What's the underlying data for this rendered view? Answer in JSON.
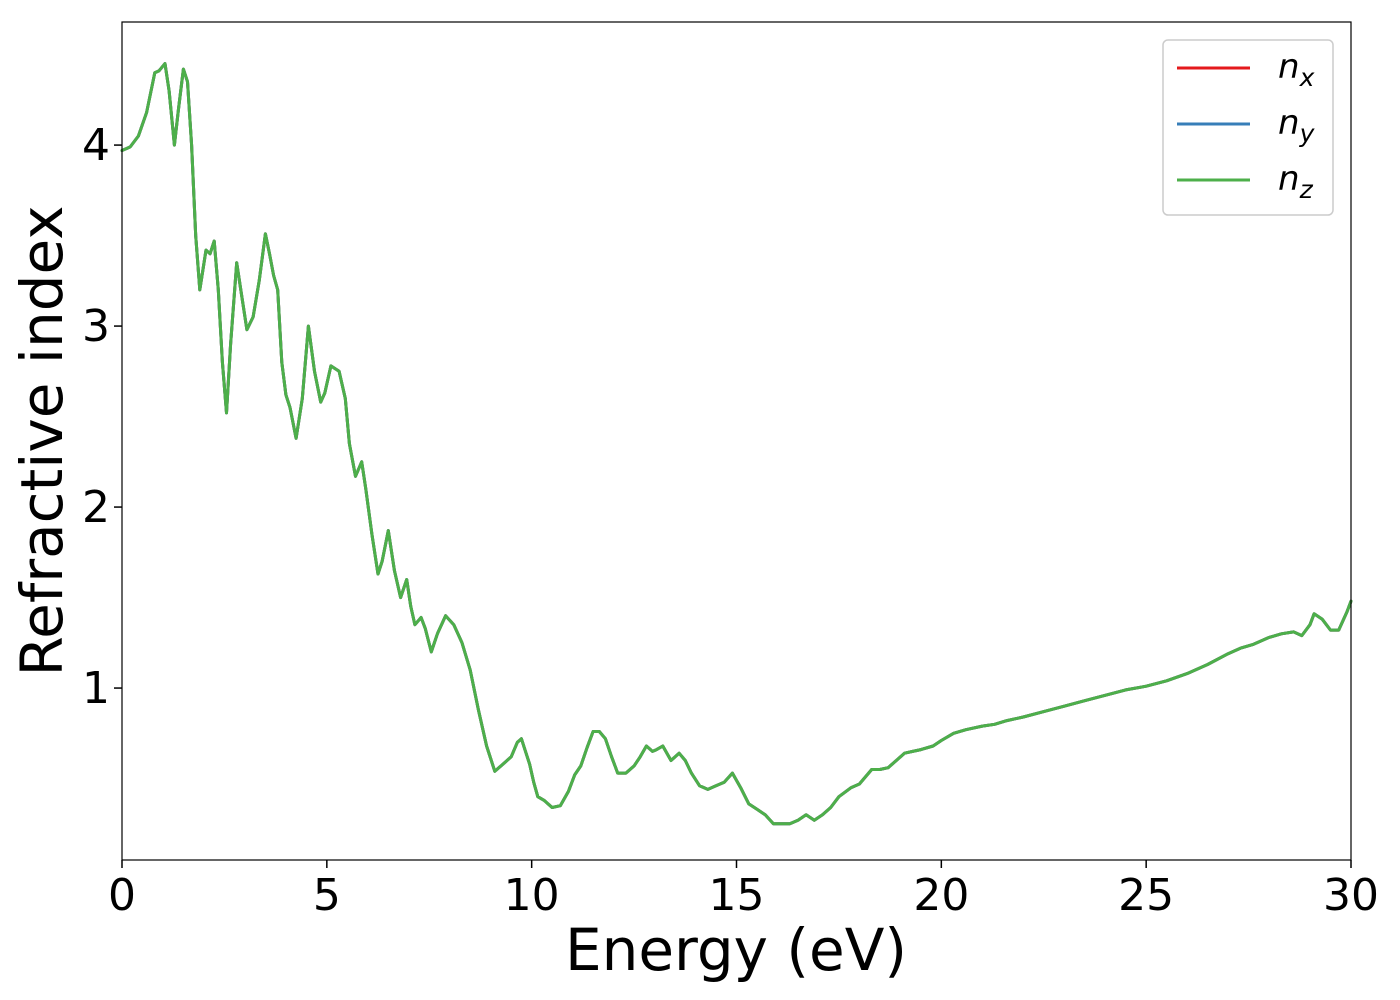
{
  "chart_data": {
    "type": "line",
    "xlabel": "Energy (eV)",
    "ylabel": "Refractive index",
    "xlim": [
      0,
      30
    ],
    "ylim": [
      0.05,
      4.68
    ],
    "xticks": [
      0,
      5,
      10,
      15,
      20,
      25,
      30
    ],
    "yticks": [
      1,
      2,
      3,
      4
    ],
    "grid": false,
    "legend_position": "top-right",
    "series": [
      {
        "name": "n",
        "sub": "x",
        "color": "#e41a1c",
        "points": [
          [
            0,
            3.97
          ],
          [
            0.2,
            3.99
          ],
          [
            0.4,
            4.05
          ],
          [
            0.6,
            4.18
          ],
          [
            0.8,
            4.4
          ],
          [
            0.9,
            4.41
          ],
          [
            1.05,
            4.45
          ],
          [
            1.15,
            4.3
          ],
          [
            1.28,
            4.0
          ],
          [
            1.38,
            4.2
          ],
          [
            1.5,
            4.42
          ],
          [
            1.6,
            4.35
          ],
          [
            1.7,
            4.0
          ],
          [
            1.8,
            3.5
          ],
          [
            1.9,
            3.2
          ],
          [
            2.05,
            3.42
          ],
          [
            2.15,
            3.4
          ],
          [
            2.25,
            3.47
          ],
          [
            2.35,
            3.2
          ],
          [
            2.45,
            2.8
          ],
          [
            2.55,
            2.52
          ],
          [
            2.65,
            2.9
          ],
          [
            2.8,
            3.35
          ],
          [
            2.9,
            3.2
          ],
          [
            3.05,
            2.98
          ],
          [
            3.2,
            3.05
          ],
          [
            3.35,
            3.25
          ],
          [
            3.5,
            3.51
          ],
          [
            3.6,
            3.4
          ],
          [
            3.7,
            3.28
          ],
          [
            3.8,
            3.2
          ],
          [
            3.9,
            2.8
          ],
          [
            4.0,
            2.62
          ],
          [
            4.1,
            2.55
          ],
          [
            4.25,
            2.38
          ],
          [
            4.4,
            2.6
          ],
          [
            4.55,
            3.0
          ],
          [
            4.7,
            2.75
          ],
          [
            4.85,
            2.58
          ],
          [
            4.95,
            2.63
          ],
          [
            5.1,
            2.78
          ],
          [
            5.3,
            2.75
          ],
          [
            5.45,
            2.6
          ],
          [
            5.55,
            2.35
          ],
          [
            5.7,
            2.17
          ],
          [
            5.85,
            2.25
          ],
          [
            5.95,
            2.1
          ],
          [
            6.1,
            1.85
          ],
          [
            6.25,
            1.63
          ],
          [
            6.35,
            1.7
          ],
          [
            6.5,
            1.87
          ],
          [
            6.65,
            1.65
          ],
          [
            6.8,
            1.5
          ],
          [
            6.95,
            1.6
          ],
          [
            7.05,
            1.45
          ],
          [
            7.15,
            1.35
          ],
          [
            7.3,
            1.39
          ],
          [
            7.4,
            1.33
          ],
          [
            7.55,
            1.2
          ],
          [
            7.7,
            1.3
          ],
          [
            7.9,
            1.4
          ],
          [
            8.1,
            1.35
          ],
          [
            8.3,
            1.25
          ],
          [
            8.5,
            1.1
          ],
          [
            8.7,
            0.88
          ],
          [
            8.9,
            0.68
          ],
          [
            9.1,
            0.54
          ],
          [
            9.3,
            0.58
          ],
          [
            9.5,
            0.62
          ],
          [
            9.65,
            0.7
          ],
          [
            9.75,
            0.72
          ],
          [
            9.85,
            0.65
          ],
          [
            9.95,
            0.58
          ],
          [
            10.05,
            0.48
          ],
          [
            10.15,
            0.4
          ],
          [
            10.3,
            0.38
          ],
          [
            10.5,
            0.34
          ],
          [
            10.7,
            0.35
          ],
          [
            10.9,
            0.43
          ],
          [
            11.05,
            0.52
          ],
          [
            11.2,
            0.57
          ],
          [
            11.35,
            0.67
          ],
          [
            11.5,
            0.76
          ],
          [
            11.65,
            0.76
          ],
          [
            11.8,
            0.72
          ],
          [
            11.95,
            0.62
          ],
          [
            12.1,
            0.53
          ],
          [
            12.3,
            0.53
          ],
          [
            12.5,
            0.57
          ],
          [
            12.65,
            0.62
          ],
          [
            12.8,
            0.68
          ],
          [
            12.95,
            0.65
          ],
          [
            13.05,
            0.66
          ],
          [
            13.2,
            0.68
          ],
          [
            13.4,
            0.6
          ],
          [
            13.6,
            0.64
          ],
          [
            13.75,
            0.6
          ],
          [
            13.9,
            0.53
          ],
          [
            14.1,
            0.46
          ],
          [
            14.3,
            0.44
          ],
          [
            14.5,
            0.46
          ],
          [
            14.7,
            0.48
          ],
          [
            14.9,
            0.53
          ],
          [
            15.1,
            0.45
          ],
          [
            15.3,
            0.36
          ],
          [
            15.5,
            0.33
          ],
          [
            15.7,
            0.3
          ],
          [
            15.9,
            0.25
          ],
          [
            16.1,
            0.25
          ],
          [
            16.3,
            0.25
          ],
          [
            16.5,
            0.27
          ],
          [
            16.7,
            0.3
          ],
          [
            16.9,
            0.27
          ],
          [
            17.1,
            0.3
          ],
          [
            17.3,
            0.34
          ],
          [
            17.5,
            0.4
          ],
          [
            17.8,
            0.45
          ],
          [
            18.0,
            0.47
          ],
          [
            18.3,
            0.55
          ],
          [
            18.5,
            0.55
          ],
          [
            18.7,
            0.56
          ],
          [
            18.9,
            0.6
          ],
          [
            19.1,
            0.64
          ],
          [
            19.3,
            0.65
          ],
          [
            19.5,
            0.66
          ],
          [
            19.8,
            0.68
          ],
          [
            20.0,
            0.71
          ],
          [
            20.3,
            0.75
          ],
          [
            20.6,
            0.77
          ],
          [
            21.0,
            0.79
          ],
          [
            21.3,
            0.8
          ],
          [
            21.6,
            0.82
          ],
          [
            22.0,
            0.84
          ],
          [
            22.5,
            0.87
          ],
          [
            23.0,
            0.9
          ],
          [
            23.5,
            0.93
          ],
          [
            24.0,
            0.96
          ],
          [
            24.5,
            0.99
          ],
          [
            25.0,
            1.01
          ],
          [
            25.5,
            1.04
          ],
          [
            26.0,
            1.08
          ],
          [
            26.5,
            1.13
          ],
          [
            27.0,
            1.19
          ],
          [
            27.3,
            1.22
          ],
          [
            27.6,
            1.24
          ],
          [
            28.0,
            1.28
          ],
          [
            28.3,
            1.3
          ],
          [
            28.6,
            1.31
          ],
          [
            28.8,
            1.29
          ],
          [
            29.0,
            1.35
          ],
          [
            29.1,
            1.41
          ],
          [
            29.3,
            1.38
          ],
          [
            29.5,
            1.32
          ],
          [
            29.7,
            1.32
          ],
          [
            29.9,
            1.42
          ],
          [
            30.0,
            1.48
          ]
        ]
      },
      {
        "name": "n",
        "sub": "y",
        "color": "#377eb8",
        "same_as_first": true
      },
      {
        "name": "n",
        "sub": "z",
        "color": "#4daf4a",
        "same_as_first": true
      }
    ]
  }
}
